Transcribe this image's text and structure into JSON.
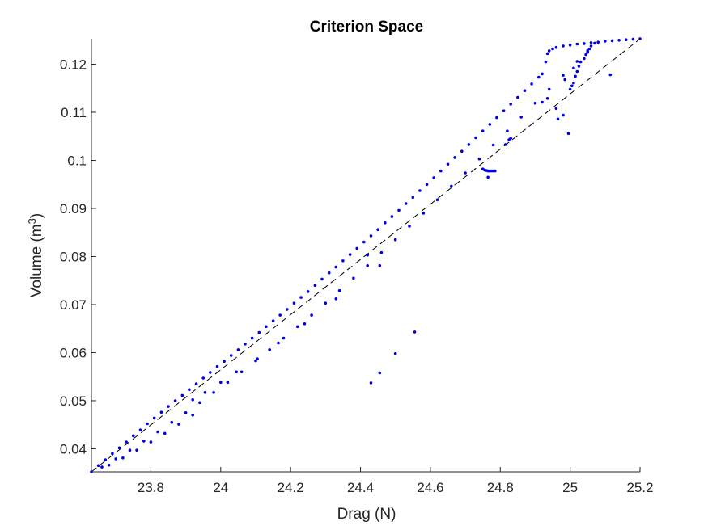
{
  "chart_data": {
    "type": "scatter",
    "title": "Criterion Space",
    "xlabel": "Drag (N)",
    "ylabel_base": "Volume (m",
    "ylabel_sup": "3",
    "ylabel_close": ")",
    "xlim": [
      23.63,
      25.2
    ],
    "ylim": [
      0.0352,
      0.1253
    ],
    "x_ticks": [
      23.8,
      24,
      24.2,
      24.4,
      24.6,
      24.8,
      25,
      25.2
    ],
    "x_tick_labels": [
      "23.8",
      "24",
      "24.2",
      "24.4",
      "24.6",
      "24.8",
      "25",
      "25.2"
    ],
    "y_ticks": [
      0.04,
      0.05,
      0.06,
      0.07,
      0.08,
      0.09,
      0.1,
      0.11,
      0.12
    ],
    "y_tick_labels": [
      "0.04",
      "0.05",
      "0.06",
      "0.07",
      "0.08",
      "0.09",
      "0.1",
      "0.11",
      "0.12"
    ],
    "grid": false,
    "point_color": "#0000e6",
    "reference_line": {
      "style": "dashed",
      "color": "#000000",
      "x": [
        23.63,
        25.2
      ],
      "y": [
        0.0352,
        0.1253
      ]
    },
    "series": [
      {
        "points": [
          [
            23.63,
            0.0352
          ],
          [
            23.65,
            0.0365
          ],
          [
            23.67,
            0.0377
          ],
          [
            23.69,
            0.039
          ],
          [
            23.71,
            0.0402
          ],
          [
            23.73,
            0.0414
          ],
          [
            23.75,
            0.0427
          ],
          [
            23.77,
            0.0439
          ],
          [
            23.79,
            0.0452
          ],
          [
            23.81,
            0.0464
          ],
          [
            23.83,
            0.0476
          ],
          [
            23.85,
            0.0488
          ],
          [
            23.87,
            0.05
          ],
          [
            23.89,
            0.0511
          ],
          [
            23.91,
            0.0523
          ],
          [
            23.93,
            0.0535
          ],
          [
            23.95,
            0.0547
          ],
          [
            23.97,
            0.0559
          ],
          [
            23.99,
            0.0571
          ],
          [
            24.01,
            0.0582
          ],
          [
            24.03,
            0.0594
          ],
          [
            24.05,
            0.0606
          ],
          [
            24.07,
            0.0618
          ],
          [
            24.09,
            0.063
          ],
          [
            24.11,
            0.0642
          ],
          [
            24.13,
            0.0654
          ],
          [
            24.15,
            0.0666
          ],
          [
            24.17,
            0.0678
          ],
          [
            24.19,
            0.069
          ],
          [
            24.21,
            0.0703
          ],
          [
            24.23,
            0.0715
          ],
          [
            24.25,
            0.0727
          ],
          [
            24.27,
            0.074
          ],
          [
            24.29,
            0.0753
          ],
          [
            24.31,
            0.0766
          ],
          [
            24.33,
            0.0778
          ],
          [
            24.35,
            0.0791
          ],
          [
            24.37,
            0.0804
          ],
          [
            24.39,
            0.0817
          ],
          [
            24.41,
            0.083
          ],
          [
            24.43,
            0.0843
          ],
          [
            24.45,
            0.0856
          ],
          [
            24.47,
            0.087
          ],
          [
            24.49,
            0.0883
          ],
          [
            24.51,
            0.0896
          ],
          [
            24.53,
            0.091
          ],
          [
            24.55,
            0.0923
          ],
          [
            24.57,
            0.0937
          ],
          [
            24.59,
            0.095
          ],
          [
            24.61,
            0.0964
          ],
          [
            24.63,
            0.0978
          ],
          [
            24.65,
            0.0992
          ],
          [
            24.67,
            0.1006
          ],
          [
            24.69,
            0.1019
          ],
          [
            24.71,
            0.1033
          ],
          [
            24.73,
            0.1047
          ],
          [
            24.75,
            0.1061
          ],
          [
            24.77,
            0.1075
          ],
          [
            24.79,
            0.1089
          ],
          [
            24.81,
            0.1103
          ],
          [
            24.83,
            0.1117
          ],
          [
            24.85,
            0.1131
          ],
          [
            24.87,
            0.1145
          ],
          [
            24.89,
            0.1159
          ],
          [
            24.91,
            0.1173
          ],
          [
            24.92,
            0.118
          ],
          [
            24.93,
            0.1205
          ],
          [
            24.935,
            0.1222
          ],
          [
            24.94,
            0.1228
          ],
          [
            24.95,
            0.1232
          ],
          [
            24.96,
            0.1235
          ],
          [
            24.98,
            0.1238
          ],
          [
            25.0,
            0.124
          ],
          [
            25.02,
            0.1242
          ],
          [
            25.04,
            0.1243
          ],
          [
            25.06,
            0.1245
          ],
          [
            25.08,
            0.1246
          ],
          [
            25.1,
            0.1248
          ],
          [
            25.12,
            0.1249
          ],
          [
            25.14,
            0.125
          ],
          [
            25.16,
            0.1251
          ],
          [
            25.18,
            0.1252
          ],
          [
            25.2,
            0.1253
          ],
          [
            23.66,
            0.0362
          ],
          [
            23.7,
            0.0379
          ],
          [
            23.74,
            0.0397
          ],
          [
            23.78,
            0.0416
          ],
          [
            23.82,
            0.0435
          ],
          [
            23.86,
            0.0455
          ],
          [
            23.9,
            0.0475
          ],
          [
            23.94,
            0.0496
          ],
          [
            23.98,
            0.0517
          ],
          [
            24.02,
            0.0538
          ],
          [
            24.06,
            0.056
          ],
          [
            24.1,
            0.0583
          ],
          [
            24.14,
            0.0606
          ],
          [
            24.18,
            0.063
          ],
          [
            24.22,
            0.0654
          ],
          [
            24.26,
            0.0678
          ],
          [
            24.3,
            0.0703
          ],
          [
            24.34,
            0.0729
          ],
          [
            24.38,
            0.0755
          ],
          [
            24.42,
            0.0781
          ],
          [
            24.46,
            0.0808
          ],
          [
            24.5,
            0.0835
          ],
          [
            24.54,
            0.0863
          ],
          [
            24.58,
            0.089
          ],
          [
            24.62,
            0.0918
          ],
          [
            24.66,
            0.0946
          ],
          [
            24.7,
            0.0974
          ],
          [
            24.74,
            0.1003
          ],
          [
            24.78,
            0.1032
          ],
          [
            24.82,
            0.1061
          ],
          [
            24.86,
            0.109
          ],
          [
            24.9,
            0.1119
          ],
          [
            24.94,
            0.1148
          ],
          [
            24.98,
            0.1177
          ],
          [
            25.02,
            0.1206
          ],
          [
            25.05,
            0.1228
          ],
          [
            25.07,
            0.1244
          ],
          [
            23.68,
            0.0366
          ],
          [
            23.72,
            0.0381
          ],
          [
            23.76,
            0.0397
          ],
          [
            23.8,
            0.0414
          ],
          [
            23.84,
            0.0432
          ],
          [
            23.88,
            0.0451
          ],
          [
            23.92,
            0.047
          ],
          [
            24.43,
            0.0537
          ],
          [
            24.455,
            0.0558
          ],
          [
            24.5,
            0.0598
          ],
          [
            24.555,
            0.0643
          ],
          [
            24.33,
            0.0712
          ],
          [
            24.24,
            0.066
          ],
          [
            24.165,
            0.062
          ],
          [
            24.105,
            0.0587
          ],
          [
            24.045,
            0.056
          ],
          [
            24.0,
            0.0538
          ],
          [
            23.955,
            0.0517
          ],
          [
            23.92,
            0.0502
          ],
          [
            24.42,
            0.0803
          ],
          [
            24.455,
            0.0781
          ],
          [
            24.75,
            0.0982
          ],
          [
            24.755,
            0.098
          ],
          [
            24.76,
            0.0979
          ],
          [
            24.765,
            0.0978
          ],
          [
            24.77,
            0.0978
          ],
          [
            24.775,
            0.0978
          ],
          [
            24.78,
            0.0978
          ],
          [
            24.785,
            0.0978
          ],
          [
            24.765,
            0.0965
          ],
          [
            24.815,
            0.1033
          ],
          [
            24.825,
            0.1043
          ],
          [
            24.83,
            0.1046
          ],
          [
            24.92,
            0.1121
          ],
          [
            24.935,
            0.1129
          ],
          [
            24.96,
            0.1108
          ],
          [
            24.965,
            0.1086
          ],
          [
            24.98,
            0.1094
          ],
          [
            24.985,
            0.1168
          ],
          [
            24.995,
            0.1056
          ],
          [
            25.0,
            0.1148
          ],
          [
            25.005,
            0.1155
          ],
          [
            25.01,
            0.1161
          ],
          [
            25.015,
            0.1175
          ],
          [
            25.02,
            0.1185
          ],
          [
            25.01,
            0.1192
          ],
          [
            25.025,
            0.1196
          ],
          [
            25.03,
            0.1205
          ],
          [
            25.04,
            0.1212
          ],
          [
            25.045,
            0.122
          ],
          [
            25.05,
            0.1225
          ],
          [
            25.055,
            0.1232
          ],
          [
            25.06,
            0.1238
          ],
          [
            25.115,
            0.1178
          ]
        ]
      }
    ]
  }
}
